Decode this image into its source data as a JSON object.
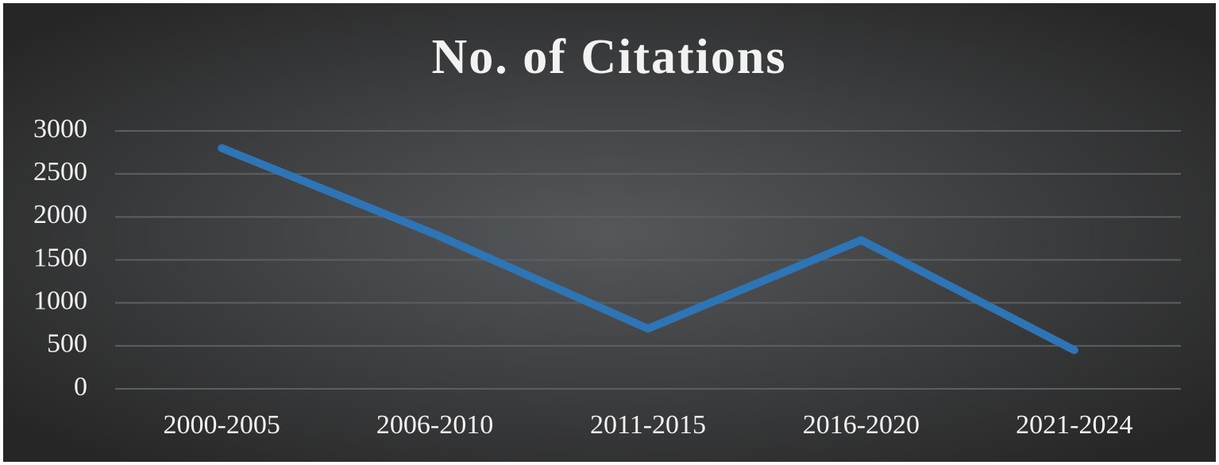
{
  "chart_data": {
    "type": "line",
    "title": "No. of Citations",
    "categories": [
      "2000-2005",
      "2006-2010",
      "2011-2015",
      "2016-2020",
      "2021-2024"
    ],
    "series": [
      {
        "name": "No. of Citations",
        "color": "#2e75b6",
        "values": [
          2800,
          1800,
          700,
          1730,
          450
        ]
      }
    ],
    "ylim": [
      0,
      3000
    ],
    "yticks": [
      0,
      500,
      1000,
      1500,
      2000,
      2500,
      3000
    ],
    "grid": true
  }
}
